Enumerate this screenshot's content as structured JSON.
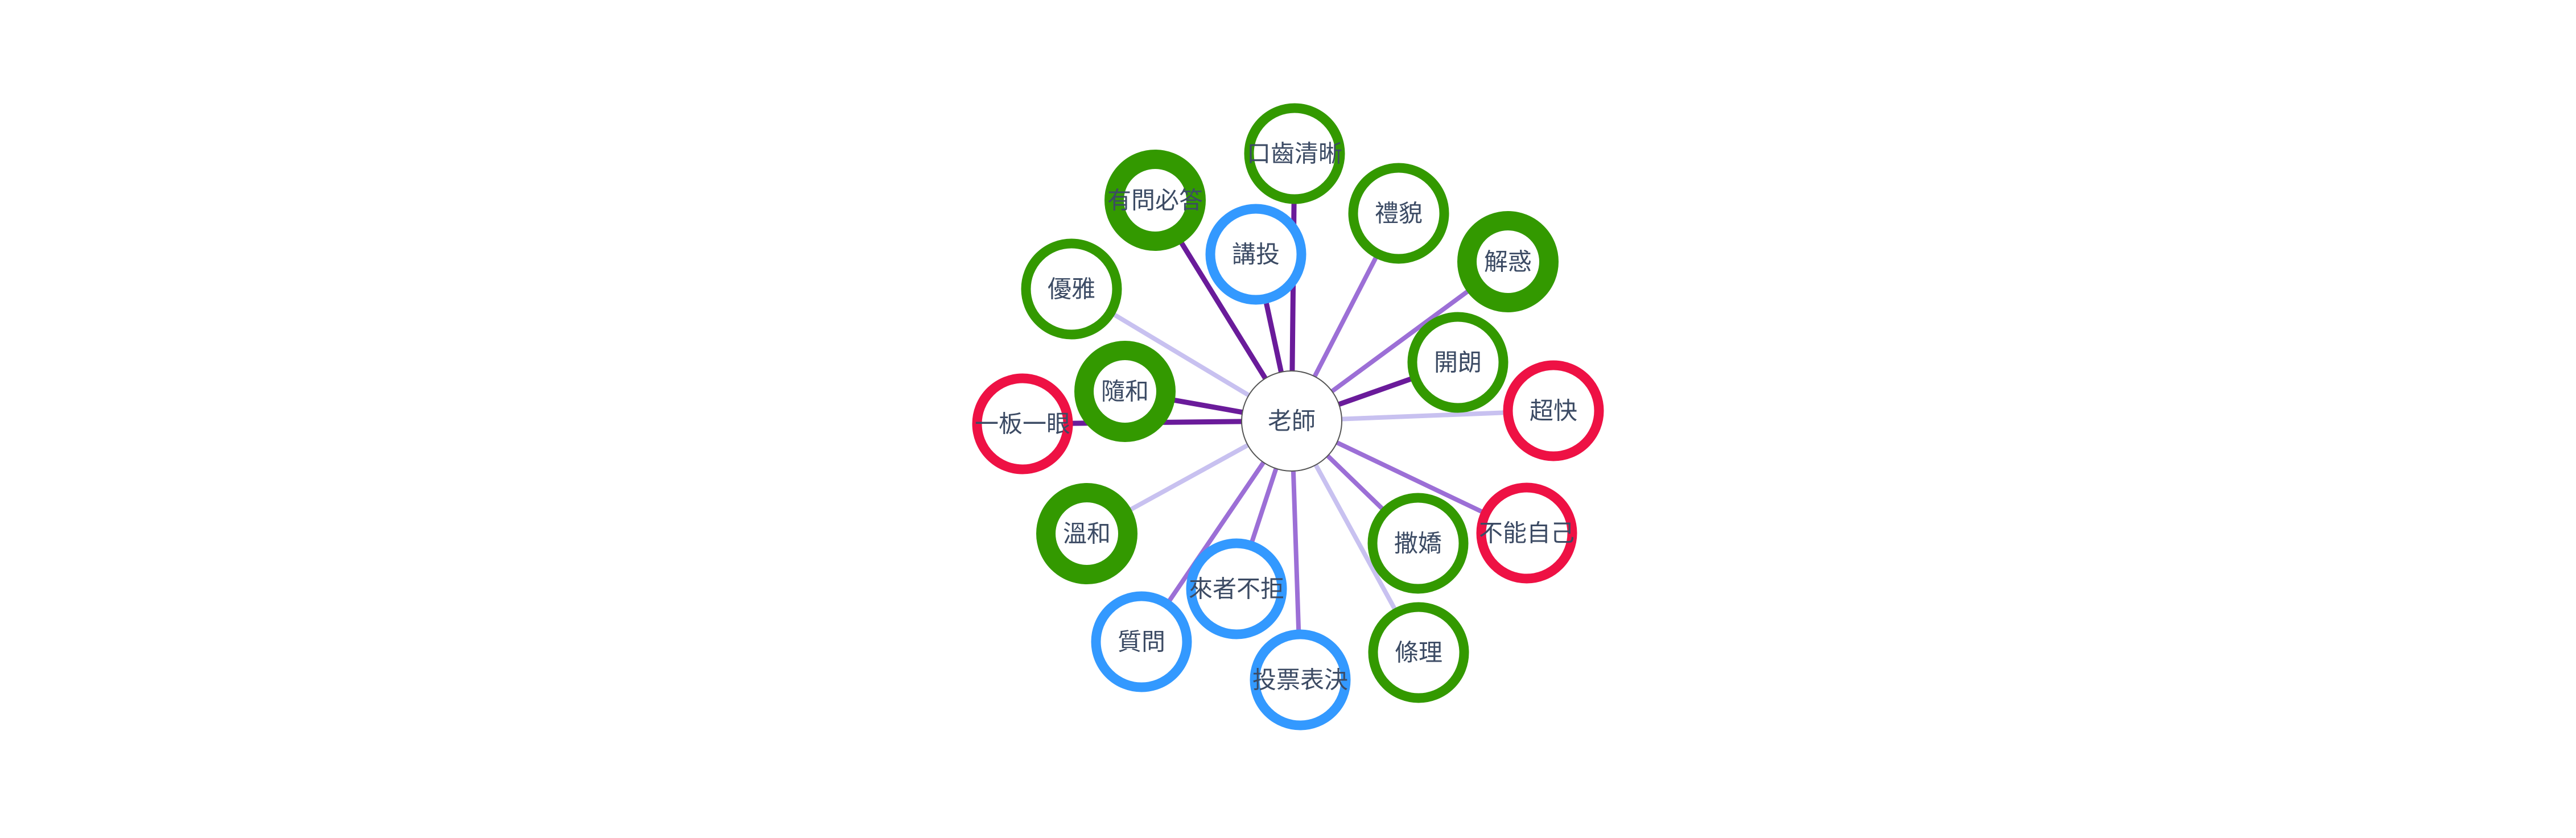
{
  "graph": {
    "center": {
      "id": "teacher",
      "label": "老師"
    },
    "colors": {
      "green": "#339900",
      "blue": "#3399ff",
      "red": "#ee1144",
      "center_stroke": "#555555",
      "edge_dark": "#6a1b9a",
      "edge_mid": "#9c6fd6",
      "edge_light": "#c8c1f0"
    },
    "nodes": [
      {
        "id": "clear-speech",
        "label": "口齒清晰",
        "color": "green",
        "ring": "thin",
        "edge": "dark"
      },
      {
        "id": "polite",
        "label": "禮貌",
        "color": "green",
        "ring": "thin",
        "edge": "mid"
      },
      {
        "id": "solve-doubts",
        "label": "解惑",
        "color": "green",
        "ring": "thick",
        "edge": "mid"
      },
      {
        "id": "cheerful",
        "label": "開朗",
        "color": "green",
        "ring": "thin",
        "edge": "dark"
      },
      {
        "id": "super-fast",
        "label": "超快",
        "color": "red",
        "ring": "thin",
        "edge": "light"
      },
      {
        "id": "cannot-help",
        "label": "不能自己",
        "color": "red",
        "ring": "thin",
        "edge": "mid"
      },
      {
        "id": "act-cute",
        "label": "撒嬌",
        "color": "green",
        "ring": "thin",
        "edge": "mid"
      },
      {
        "id": "orderly",
        "label": "條理",
        "color": "green",
        "ring": "thin",
        "edge": "light"
      },
      {
        "id": "vote",
        "label": "投票表決",
        "color": "blue",
        "ring": "thin",
        "edge": "mid"
      },
      {
        "id": "welcome-all",
        "label": "來者不拒",
        "color": "blue",
        "ring": "thin",
        "edge": "mid"
      },
      {
        "id": "question",
        "label": "質問",
        "color": "blue",
        "ring": "thin",
        "edge": "mid"
      },
      {
        "id": "gentle",
        "label": "溫和",
        "color": "green",
        "ring": "thick",
        "edge": "light"
      },
      {
        "id": "rigid",
        "label": "一板一眼",
        "color": "red",
        "ring": "thin",
        "edge": "dark"
      },
      {
        "id": "easygoing",
        "label": "隨和",
        "color": "green",
        "ring": "thick",
        "edge": "dark"
      },
      {
        "id": "elegant",
        "label": "優雅",
        "color": "green",
        "ring": "thin",
        "edge": "light"
      },
      {
        "id": "answer-all",
        "label": "有問必答",
        "color": "green",
        "ring": "thick",
        "edge": "dark"
      },
      {
        "id": "lecture",
        "label": "講投",
        "color": "blue",
        "ring": "thin",
        "edge": "dark"
      }
    ]
  }
}
